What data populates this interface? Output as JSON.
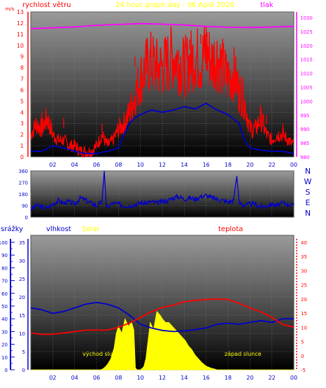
{
  "colors": {
    "wind": "#ff0000",
    "gust": "#ff0000",
    "wind_dir": "#0000cc",
    "pressure": "#ff00ff",
    "temperature": "#ff0000",
    "humidity": "#0000cc",
    "solar": "#ffff00",
    "rain": "#0000cc",
    "title": "#ffff00",
    "bg_top": "#909090",
    "bg_bottom": "#000000"
  },
  "chart_data": [
    {
      "type": "line",
      "title": "24 hour graph day : 06 April 2020",
      "left_axis_label": "rychlost větru",
      "right_axis_label": "tlak",
      "left_unit": "m/s",
      "ylim_left": [
        0,
        13
      ],
      "ylim_right": [
        980,
        1032
      ],
      "left_ticks": [
        "0",
        "1",
        "2",
        "3",
        "4",
        "5",
        "6",
        "7",
        "8",
        "9",
        "10",
        "11",
        "12",
        "13"
      ],
      "right_ticks": [
        "980",
        "985",
        "990",
        "995",
        "1000",
        "1005",
        "1010",
        "1015",
        "1020",
        "1025",
        "1030"
      ],
      "x_ticks": [
        "02",
        "04",
        "06",
        "08",
        "10",
        "12",
        "14",
        "16",
        "18",
        "20",
        "22",
        "00"
      ],
      "x_range_hours": [
        0,
        24
      ],
      "series": [
        {
          "name": "rychlost větru",
          "axis": "left",
          "x": [
            0,
            0.5,
            1,
            1.5,
            2,
            2.5,
            3,
            3.5,
            4,
            4.5,
            5,
            5.5,
            6,
            6.5,
            7,
            7.5,
            8,
            8.5,
            9,
            9.5,
            10,
            10.5,
            11,
            11.5,
            12,
            12.5,
            13,
            13.5,
            14,
            14.5,
            15,
            15.5,
            16,
            16.5,
            17,
            17.5,
            18,
            18.5,
            19,
            19.5,
            20,
            20.5,
            21,
            21.5,
            22,
            22.5,
            23,
            23.5,
            24
          ],
          "y": [
            2.0,
            3.0,
            2.5,
            3.5,
            2.0,
            1.5,
            1.5,
            1.0,
            1.0,
            0.5,
            0.5,
            0.5,
            1.0,
            2.0,
            1.0,
            1.5,
            2.5,
            3.0,
            4.0,
            5.5,
            7.0,
            8.0,
            8.5,
            8.0,
            8.0,
            8.5,
            9.0,
            8.5,
            8.0,
            8.5,
            9.0,
            8.5,
            9.5,
            8.5,
            9.0,
            8.0,
            7.0,
            7.5,
            6.0,
            5.0,
            2.5,
            2.5,
            3.5,
            2.0,
            1.5,
            2.0,
            2.0,
            1.5,
            1.0
          ]
        },
        {
          "name": "gust",
          "axis": "left",
          "x": [
            1.0,
            3.0,
            6.5,
            9.5,
            11.5,
            13.5,
            14.5,
            15.5,
            16.0,
            17.5,
            19.0,
            21.5,
            23.0
          ],
          "y": [
            4.0,
            3.5,
            3.0,
            9.0,
            8.5,
            9.5,
            10.5,
            11.0,
            11.7,
            10.0,
            6.5,
            3.8,
            3.0
          ]
        },
        {
          "name": "wind average",
          "axis": "left",
          "x": [
            0,
            1,
            2,
            3,
            4,
            5,
            6,
            7,
            8,
            8.5,
            9,
            9.5,
            10,
            11,
            12,
            13,
            14,
            15,
            16,
            17,
            18,
            19,
            19.5,
            20,
            21,
            22,
            23,
            24
          ],
          "y": [
            0.5,
            0.5,
            1.0,
            0.8,
            0.5,
            0.3,
            0.3,
            0.5,
            0.8,
            2.0,
            3.0,
            3.5,
            3.8,
            4.2,
            4.0,
            4.2,
            4.5,
            4.3,
            4.8,
            4.2,
            3.8,
            3.0,
            1.5,
            0.8,
            0.6,
            0.5,
            0.5,
            0.3
          ]
        },
        {
          "name": "tlak",
          "axis": "right",
          "x": [
            0,
            2,
            4,
            6,
            8,
            10,
            12,
            14,
            16,
            18,
            20,
            22,
            24
          ],
          "y": [
            1026.0,
            1026.3,
            1026.6,
            1027.2,
            1027.5,
            1027.8,
            1027.6,
            1027.3,
            1026.8,
            1026.5,
            1026.4,
            1026.6,
            1026.8
          ]
        }
      ]
    },
    {
      "type": "line",
      "title": "",
      "ylim": [
        0,
        360
      ],
      "y_ticks": [
        "0",
        "90",
        "180",
        "270",
        "360"
      ],
      "direction_labels": [
        "N",
        "W",
        "S",
        "E",
        "N"
      ],
      "x_range_hours": [
        0,
        24
      ],
      "series": [
        {
          "name": "wind direction",
          "x": [
            0,
            0.5,
            1,
            1.5,
            2,
            2.5,
            3,
            3.5,
            4,
            4.5,
            5,
            5.5,
            6,
            6.5,
            6.7,
            6.9,
            7.5,
            8,
            8.5,
            9,
            9.5,
            10,
            10.5,
            11,
            11.5,
            12,
            12.5,
            13,
            13.5,
            14,
            14.5,
            15,
            15.5,
            16,
            16.5,
            17,
            17.5,
            18,
            18.5,
            18.8,
            19,
            19.5,
            20,
            20.5,
            21,
            21.5,
            22,
            22.5,
            23,
            23.5,
            24
          ],
          "y": [
            60,
            90,
            80,
            70,
            100,
            130,
            110,
            120,
            100,
            150,
            130,
            110,
            90,
            120,
            360,
            70,
            110,
            100,
            90,
            90,
            100,
            110,
            110,
            120,
            110,
            120,
            130,
            150,
            160,
            140,
            150,
            140,
            160,
            170,
            150,
            140,
            130,
            120,
            130,
            320,
            110,
            90,
            100,
            100,
            80,
            90,
            100,
            90,
            110,
            100,
            90
          ]
        }
      ]
    },
    {
      "type": "area",
      "title": "",
      "labels": {
        "rain": "srážky",
        "humidity": "vlhkost",
        "solar": "Solar",
        "temperature": "teplota"
      },
      "rain_ticks": [
        "0",
        "10",
        "20",
        "30",
        "40",
        "50",
        "60",
        "70",
        "80",
        "90",
        "100"
      ],
      "solar_ticks": [
        "0",
        "5",
        "10",
        "15",
        "20",
        "25",
        "30",
        "35"
      ],
      "temp_ticks": [
        "-5",
        "0",
        "5",
        "10",
        "15",
        "20",
        "25",
        "30",
        "35",
        "40"
      ],
      "ylim_rain": [
        0,
        100
      ],
      "ylim_solar": [
        0,
        35
      ],
      "ylim_temp": [
        -5,
        40
      ],
      "x_ticks": [
        "02",
        "04",
        "06",
        "08",
        "10",
        "12",
        "14",
        "16",
        "18",
        "20",
        "22",
        "00"
      ],
      "x_range_hours": [
        0,
        24
      ],
      "annotations": {
        "sunrise": "východ slunce",
        "sunset": "západ slunce"
      },
      "series": [
        {
          "name": "vlhkost",
          "axis": "solar",
          "x": [
            0,
            1,
            2,
            3,
            4,
            5,
            6,
            7,
            8,
            8.5,
            9,
            10,
            11,
            12,
            13,
            14,
            15,
            16,
            17,
            18,
            19,
            20,
            21,
            22,
            23,
            24
          ],
          "y": [
            17.0,
            16.5,
            15.5,
            16.0,
            17.0,
            18.0,
            18.5,
            18.0,
            17.0,
            16.0,
            15.0,
            12.5,
            11.5,
            10.8,
            10.5,
            10.7,
            11.0,
            11.5,
            12.5,
            12.8,
            12.5,
            13.0,
            13.5,
            13.0,
            14.0,
            14.0
          ]
        },
        {
          "name": "teplota",
          "axis": "temp",
          "x": [
            0,
            1,
            2,
            3,
            4,
            5,
            6,
            7,
            8,
            9,
            10,
            11,
            12,
            13,
            14,
            15,
            16,
            17,
            18,
            19,
            20,
            21,
            22,
            23,
            24
          ],
          "y": [
            8.0,
            7.5,
            7.5,
            8.0,
            8.5,
            9.0,
            9.0,
            9.0,
            10.0,
            11.5,
            13.5,
            15.5,
            17.0,
            17.8,
            19.0,
            19.5,
            19.8,
            20.0,
            19.8,
            18.5,
            16.8,
            15.5,
            13.5,
            11.0,
            10.0
          ]
        },
        {
          "name": "Solar",
          "axis": "solar",
          "fill": true,
          "x": [
            0,
            6.4,
            6.6,
            6.8,
            7.0,
            7.3,
            7.6,
            7.8,
            8.0,
            8.3,
            8.6,
            8.9,
            9.2,
            9.4,
            9.55,
            9.7,
            10.0,
            10.3,
            10.5,
            10.7,
            10.9,
            11.2,
            11.5,
            11.8,
            12.0,
            12.3,
            12.6,
            12.9,
            13.2,
            13.5,
            13.8,
            14.1,
            14.4,
            14.7,
            15.0,
            15.3,
            15.6,
            16.0,
            16.4,
            16.8,
            17.0,
            24
          ],
          "y": [
            0,
            0,
            0.3,
            0.8,
            1.5,
            3.0,
            6.0,
            10.0,
            12.0,
            10.0,
            14.0,
            12.0,
            13.0,
            11.0,
            0.5,
            0,
            0,
            0.8,
            3.0,
            8.0,
            13.0,
            11.0,
            16.0,
            15.0,
            14.0,
            13.0,
            13.0,
            12.0,
            11.0,
            10.0,
            9.0,
            8.0,
            6.5,
            5.5,
            4.0,
            3.0,
            2.0,
            1.0,
            0.5,
            0.2,
            0,
            0
          ]
        }
      ]
    }
  ]
}
